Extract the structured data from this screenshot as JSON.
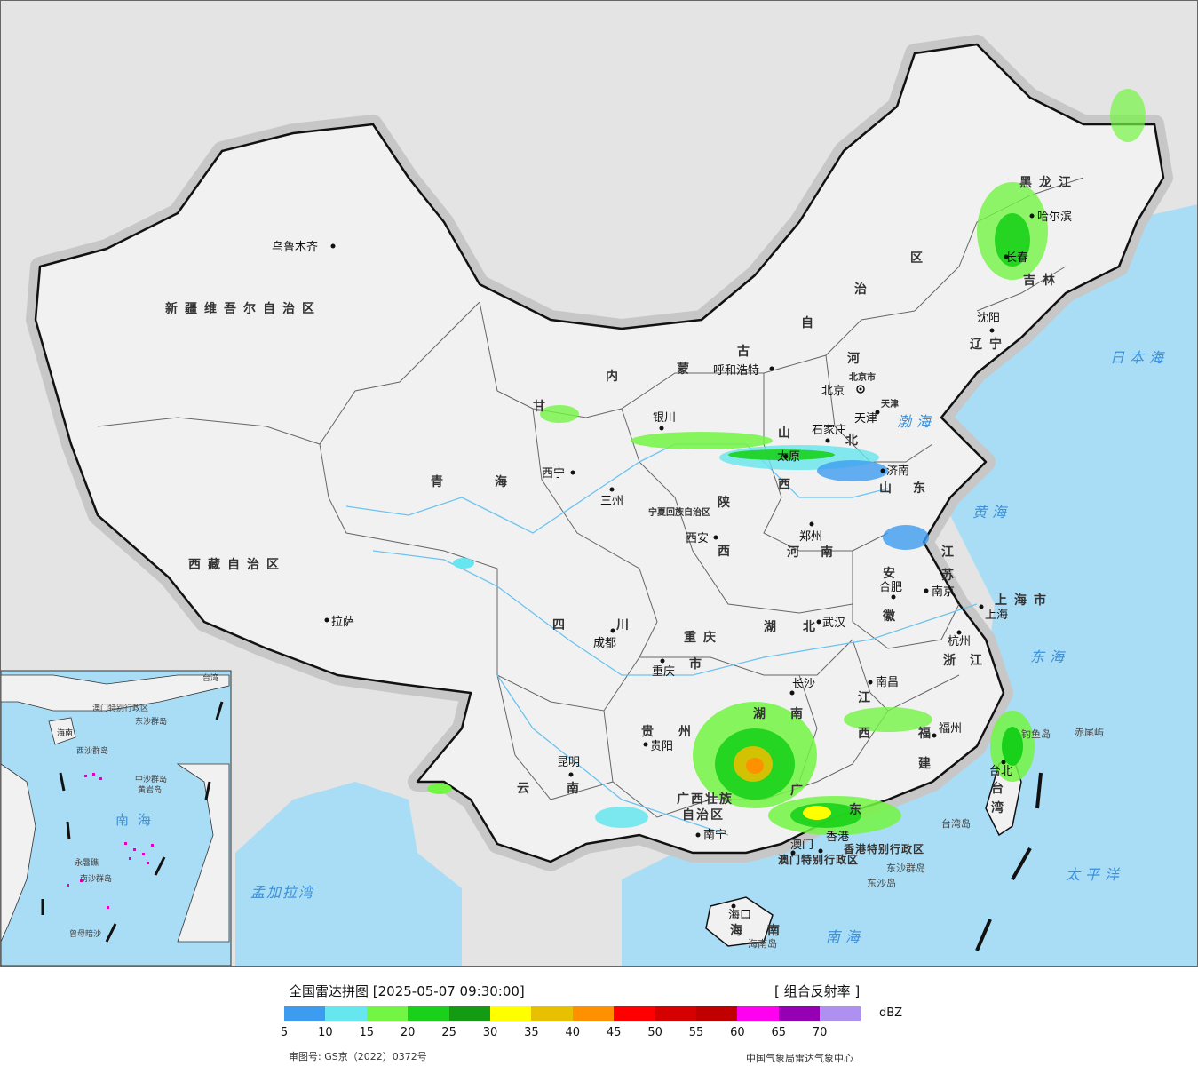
{
  "map": {
    "provinces": [
      {
        "id": "xinjiang",
        "text": "新疆维吾尔自治区"
      },
      {
        "id": "xizang",
        "text": "西藏自治区"
      },
      {
        "id": "qinghai-1",
        "text": "青"
      },
      {
        "id": "qinghai-2",
        "text": "海"
      },
      {
        "id": "gansu",
        "text": "甘"
      },
      {
        "id": "neimenggu-1",
        "text": "内"
      },
      {
        "id": "neimenggu-2",
        "text": "蒙"
      },
      {
        "id": "neimenggu-3",
        "text": "古"
      },
      {
        "id": "neimenggu-4",
        "text": "自"
      },
      {
        "id": "neimenggu-5",
        "text": "治"
      },
      {
        "id": "neimenggu-6",
        "text": "区"
      },
      {
        "id": "heilongjiang",
        "text": "黑龙江"
      },
      {
        "id": "jilin",
        "text": "吉林"
      },
      {
        "id": "liaoning",
        "text": "辽宁"
      },
      {
        "id": "hebei-1",
        "text": "河"
      },
      {
        "id": "hebei-2",
        "text": "北"
      },
      {
        "id": "shanxi-1",
        "text": "山"
      },
      {
        "id": "shanxi-2",
        "text": "西"
      },
      {
        "id": "shandong-1",
        "text": "山"
      },
      {
        "id": "shandong-2",
        "text": "东"
      },
      {
        "id": "ningxia",
        "text": "宁夏回族自治区"
      },
      {
        "id": "shaanxi-1",
        "text": "陕"
      },
      {
        "id": "shaanxi-2",
        "text": "西"
      },
      {
        "id": "henan-1",
        "text": "河"
      },
      {
        "id": "henan-2",
        "text": "南"
      },
      {
        "id": "jiangsu-1",
        "text": "江"
      },
      {
        "id": "jiangsu-2",
        "text": "苏"
      },
      {
        "id": "anhui-1",
        "text": "安"
      },
      {
        "id": "anhui-2",
        "text": "徽"
      },
      {
        "id": "shanghai",
        "text": "上海市"
      },
      {
        "id": "sichuan-1",
        "text": "四"
      },
      {
        "id": "sichuan-2",
        "text": "川"
      },
      {
        "id": "hubei-1",
        "text": "湖"
      },
      {
        "id": "hubei-2",
        "text": "北"
      },
      {
        "id": "chongqing-1",
        "text": "重庆"
      },
      {
        "id": "chongqing-2",
        "text": "市"
      },
      {
        "id": "zhejiang-1",
        "text": "浙"
      },
      {
        "id": "zhejiang-2",
        "text": "江"
      },
      {
        "id": "hunan-1",
        "text": "湖"
      },
      {
        "id": "hunan-2",
        "text": "南"
      },
      {
        "id": "jiangxi-1",
        "text": "江"
      },
      {
        "id": "jiangxi-2",
        "text": "西"
      },
      {
        "id": "guizhou-1",
        "text": "贵"
      },
      {
        "id": "guizhou-2",
        "text": "州"
      },
      {
        "id": "fujian-1",
        "text": "福"
      },
      {
        "id": "fujian-2",
        "text": "建"
      },
      {
        "id": "yunnan-1",
        "text": "云"
      },
      {
        "id": "yunnan-2",
        "text": "南"
      },
      {
        "id": "guangxi-1",
        "text": "广西壮族"
      },
      {
        "id": "guangxi-2",
        "text": "自治区"
      },
      {
        "id": "guangdong-1",
        "text": "广"
      },
      {
        "id": "guangdong-2",
        "text": "东"
      },
      {
        "id": "taiwan-1",
        "text": "台"
      },
      {
        "id": "taiwan-2",
        "text": "湾"
      },
      {
        "id": "hainan-1",
        "text": "海"
      },
      {
        "id": "hainan-2",
        "text": "南"
      },
      {
        "id": "tianjin",
        "text": "天津"
      },
      {
        "id": "beijing-region",
        "text": "北京市"
      },
      {
        "id": "hongkong",
        "text": "香港特别行政区"
      },
      {
        "id": "macau",
        "text": "澳门特别行政区"
      }
    ],
    "cities": [
      {
        "id": "urumqi",
        "text": "乌鲁木齐"
      },
      {
        "id": "lhasa",
        "text": "拉萨"
      },
      {
        "id": "xining",
        "text": "西宁"
      },
      {
        "id": "lanzhou",
        "text": "三州"
      },
      {
        "id": "yinchuan",
        "text": "银川"
      },
      {
        "id": "hohhot",
        "text": "呼和浩特"
      },
      {
        "id": "beijing",
        "text": "北京"
      },
      {
        "id": "tianjin-city",
        "text": "天津"
      },
      {
        "id": "shijiazhuang",
        "text": "石家庄"
      },
      {
        "id": "taiyuan",
        "text": "太原"
      },
      {
        "id": "jinan",
        "text": "济南"
      },
      {
        "id": "xian",
        "text": "西安"
      },
      {
        "id": "zhengzhou",
        "text": "郑州"
      },
      {
        "id": "hefei",
        "text": "合肥"
      },
      {
        "id": "nanjing",
        "text": "南京"
      },
      {
        "id": "shanghai-city",
        "text": "上海"
      },
      {
        "id": "hangzhou",
        "text": "杭州"
      },
      {
        "id": "wuhan",
        "text": "武汉"
      },
      {
        "id": "chengdu",
        "text": "成都"
      },
      {
        "id": "chongqing",
        "text": "重庆"
      },
      {
        "id": "changsha",
        "text": "长沙"
      },
      {
        "id": "nanchang",
        "text": "南昌"
      },
      {
        "id": "fuzhou",
        "text": "福州"
      },
      {
        "id": "guiyang",
        "text": "贵阳"
      },
      {
        "id": "kunming",
        "text": "昆明"
      },
      {
        "id": "nanning",
        "text": "南宁"
      },
      {
        "id": "aomen",
        "text": "澳门"
      },
      {
        "id": "xianggang",
        "text": "香港"
      },
      {
        "id": "haikou",
        "text": "海口"
      },
      {
        "id": "taipei",
        "text": "台北"
      },
      {
        "id": "shenyang",
        "text": "沈阳"
      },
      {
        "id": "changchun",
        "text": "长春"
      },
      {
        "id": "harbin",
        "text": "哈尔滨"
      }
    ],
    "seas": [
      {
        "id": "bohai",
        "text": "渤海"
      },
      {
        "id": "huanghai",
        "text": "黄海"
      },
      {
        "id": "donghai",
        "text": "东海"
      },
      {
        "id": "riben",
        "text": "日本海"
      },
      {
        "id": "taipingyang",
        "text": "太平洋"
      },
      {
        "id": "nanhai",
        "text": "南海"
      },
      {
        "id": "mengjiala",
        "text": "孟加拉湾"
      }
    ],
    "islands": [
      {
        "id": "chiwei",
        "text": "赤尾屿"
      },
      {
        "id": "diaoyu",
        "text": "钓鱼岛"
      },
      {
        "id": "taiwan-island",
        "text": "台湾岛"
      },
      {
        "id": "dongsha-qundao",
        "text": "东沙群岛"
      },
      {
        "id": "dongsha-dao",
        "text": "东沙岛"
      },
      {
        "id": "hainan-dao",
        "text": "海南岛"
      }
    ],
    "inset": {
      "labels": [
        {
          "id": "inset-nanhai",
          "text": "南海"
        },
        {
          "id": "inset-hainan",
          "text": "海南"
        },
        {
          "id": "inset-xisha",
          "text": "西沙群岛"
        },
        {
          "id": "inset-zhongsha",
          "text": "中沙群岛"
        },
        {
          "id": "inset-nansha",
          "text": "南沙群岛"
        },
        {
          "id": "inset-dongsha",
          "text": "东沙群岛"
        },
        {
          "id": "inset-huangyan",
          "text": "黄岩岛"
        },
        {
          "id": "inset-zengmu",
          "text": "曾母暗沙"
        },
        {
          "id": "inset-taiwan",
          "text": "台湾"
        },
        {
          "id": "inset-aomen",
          "text": "澳门特别行政区"
        },
        {
          "id": "inset-yongshu",
          "text": "永暑礁"
        }
      ]
    }
  },
  "legend": {
    "title": "全国雷达拼图 [2025-05-07 09:30:00]",
    "product": "[ 组合反射率 ]",
    "unit": "dBZ",
    "review_number": "审图号: GS京（2022）0372号",
    "source": "中国气象局雷达气象中心",
    "colors": [
      "#3d9cf0",
      "#66e6ee",
      "#73f543",
      "#19d11b",
      "#129b13",
      "#ffff00",
      "#e7c000",
      "#ff9000",
      "#ff0000",
      "#d60000",
      "#c00000",
      "#ff00f0",
      "#9600b4",
      "#ad90f0"
    ],
    "ticks": [
      "5",
      "10",
      "15",
      "20",
      "25",
      "30",
      "35",
      "40",
      "45",
      "50",
      "55",
      "60",
      "65",
      "70"
    ]
  }
}
